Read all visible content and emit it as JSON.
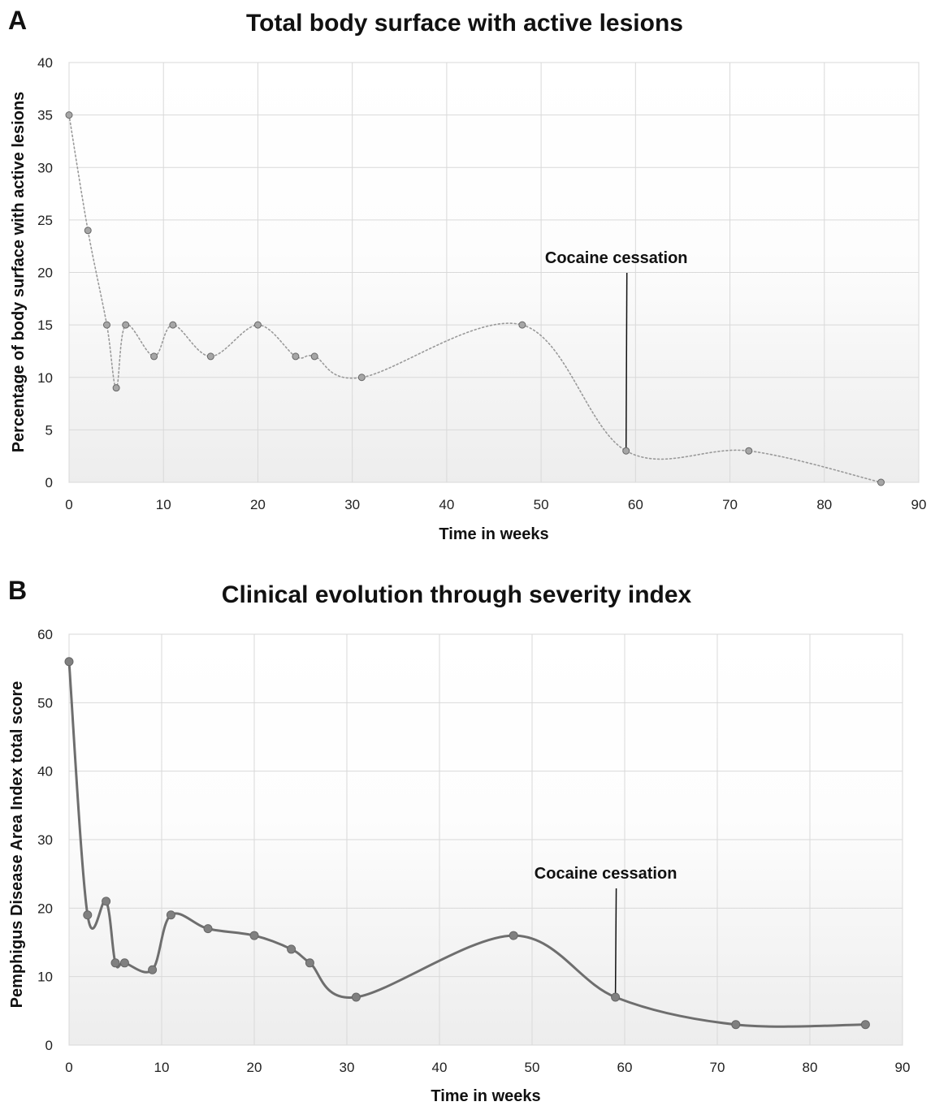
{
  "chart_data": [
    {
      "panel": "A",
      "type": "line",
      "title": "Total body surface with active lesions",
      "xlabel": "Time in weeks",
      "ylabel": "Percentage of body surface with active lesions",
      "xlim": [
        0,
        90
      ],
      "ylim": [
        0,
        40
      ],
      "xticks": [
        0,
        10,
        20,
        30,
        40,
        50,
        60,
        70,
        80,
        90
      ],
      "yticks": [
        0,
        5,
        10,
        15,
        20,
        25,
        30,
        35,
        40
      ],
      "grid": true,
      "line_style": "dotted",
      "series": [
        {
          "x": [
            0,
            2,
            4,
            5,
            6,
            9,
            11,
            15,
            20,
            24,
            26,
            31,
            48,
            59,
            72,
            86
          ],
          "values": [
            35,
            24,
            15,
            9,
            15,
            12,
            15,
            12,
            15,
            12,
            12,
            10,
            15,
            3,
            3,
            0
          ]
        }
      ],
      "annotation": {
        "text": "Cocaine cessation",
        "x": 59,
        "y": 3
      }
    },
    {
      "panel": "B",
      "type": "line",
      "title": "Clinical evolution through severity index",
      "xlabel": "Time in weeks",
      "ylabel": "Pemphigus Disease Area Index total score",
      "xlim": [
        0,
        90
      ],
      "ylim": [
        0,
        60
      ],
      "xticks": [
        0,
        10,
        20,
        30,
        40,
        50,
        60,
        70,
        80,
        90
      ],
      "yticks": [
        0,
        10,
        20,
        30,
        40,
        50,
        60
      ],
      "grid": true,
      "line_style": "solid",
      "series": [
        {
          "x": [
            0,
            2,
            4,
            5,
            6,
            9,
            11,
            15,
            20,
            24,
            26,
            31,
            48,
            59,
            72,
            86
          ],
          "values": [
            56,
            19,
            21,
            12,
            12,
            11,
            19,
            17,
            16,
            14,
            12,
            7,
            16,
            7,
            3,
            3
          ]
        }
      ],
      "annotation": {
        "text": "Cocaine cessation",
        "x": 59,
        "y": 7
      }
    }
  ],
  "colors": {
    "line_a": "#9a9a9a",
    "line_b": "#6e6e6e",
    "marker_a": "#a6a6a6",
    "marker_b": "#808080",
    "grid": "#d9d9d9",
    "plot_bg_top": "#ffffff",
    "plot_bg_bottom": "#efefef"
  }
}
